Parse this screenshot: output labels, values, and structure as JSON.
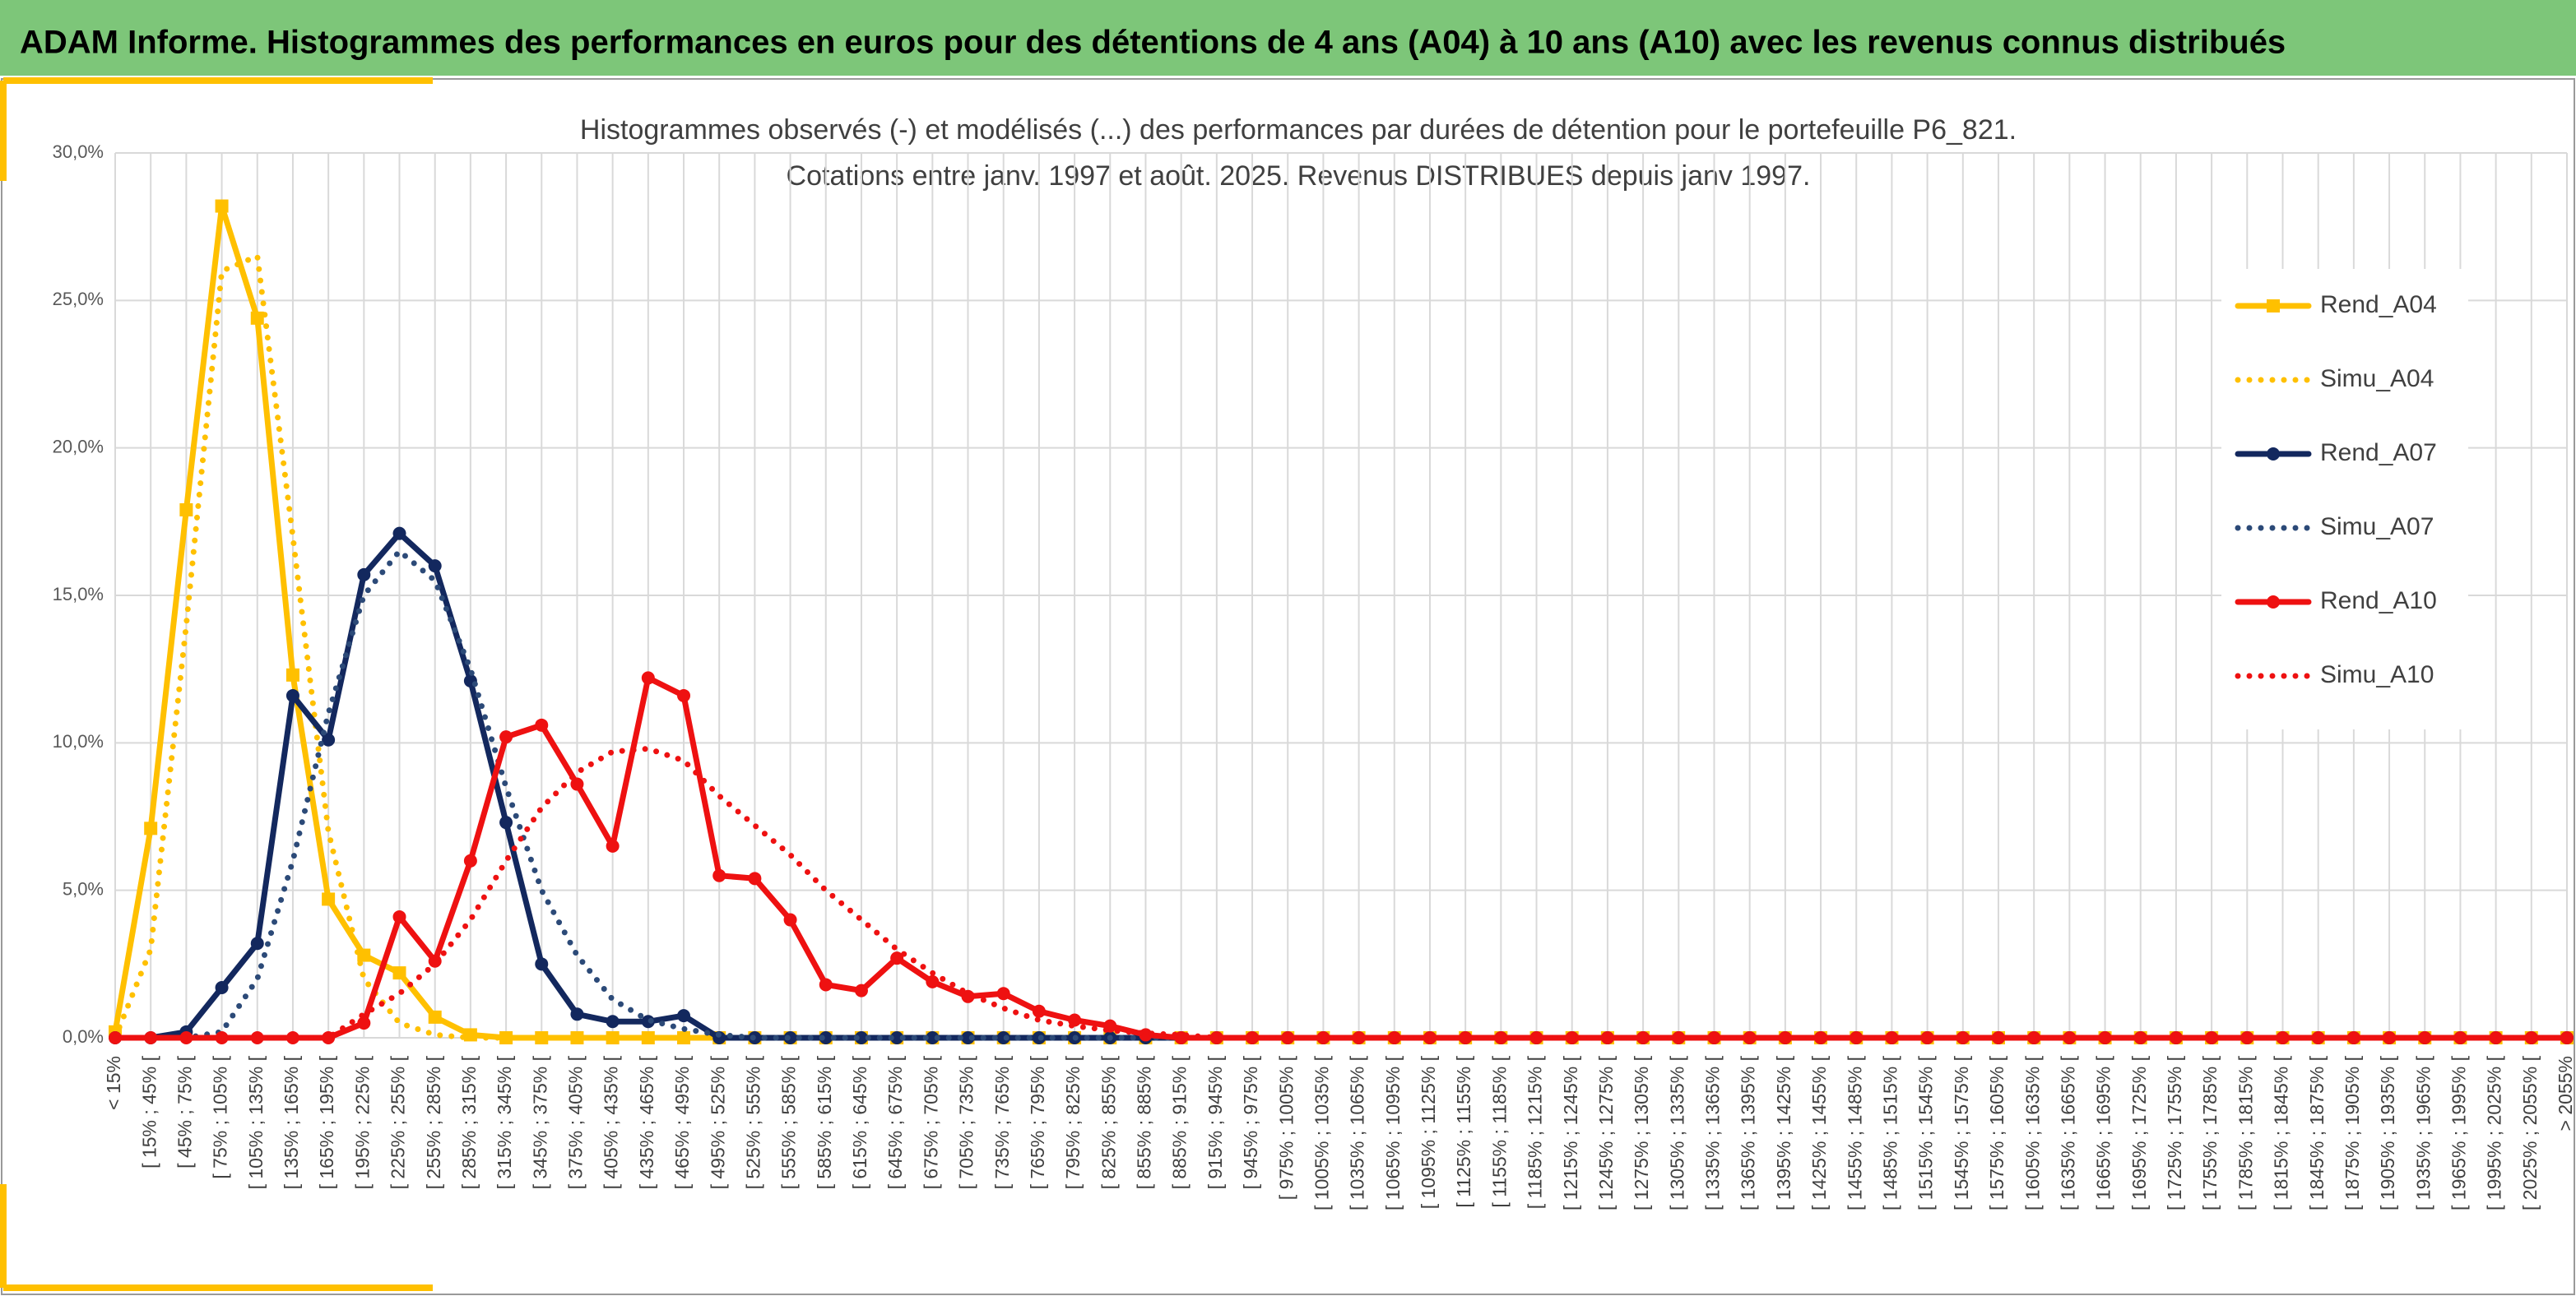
{
  "header": {
    "title": "ADAM Informe. Histogrammes des performances en euros pour des détentions de 4 ans (A04) à 10 ans (A10) avec les revenus connus distribués"
  },
  "chart_data": {
    "type": "line",
    "title": "Histogrammes observés (-) et modélisés (...) des performances par durées de détention pour le portefeuille P6_821.",
    "subtitle": "Cotations entre janv. 1997 et août. 2025. Revenus DISTRIBUES depuis janv 1997.",
    "categories": [
      "< 15%",
      "[ 15% ; 45% [",
      "[ 45% ; 75% [",
      "[ 75% ; 105% [",
      "[ 105% ; 135% [",
      "[ 135% ; 165% [",
      "[ 165% ; 195% [",
      "[ 195% ; 225% [",
      "[ 225% ; 255% [",
      "[ 255% ; 285% [",
      "[ 285% ; 315% [",
      "[ 315% ; 345% [",
      "[ 345% ; 375% [",
      "[ 375% ; 405% [",
      "[ 405% ; 435% [",
      "[ 435% ; 465% [",
      "[ 465% ; 495% [",
      "[ 495% ; 525% [",
      "[ 525% ; 555% [",
      "[ 555% ; 585% [",
      "[ 585% ; 615% [",
      "[ 615% ; 645% [",
      "[ 645% ; 675% [",
      "[ 675% ; 705% [",
      "[ 705% ; 735% [",
      "[ 735% ; 765% [",
      "[ 765% ; 795% [",
      "[ 795% ; 825% [",
      "[ 825% ; 855% [",
      "[ 855% ; 885% [",
      "[ 885% ; 915% [",
      "[ 915% ; 945% [",
      "[ 945% ; 975% [",
      "[ 975% ; 1005% [",
      "[ 1005% ; 1035% [",
      "[ 1035% ; 1065% [",
      "[ 1065% ; 1095% [",
      "[ 1095% ; 1125% [",
      "[ 1125% ; 1155% [",
      "[ 1155% ; 1185% [",
      "[ 1185% ; 1215% [",
      "[ 1215% ; 1245% [",
      "[ 1245% ; 1275% [",
      "[ 1275% ; 1305% [",
      "[ 1305% ; 1335% [",
      "[ 1335% ; 1365% [",
      "[ 1365% ; 1395% [",
      "[ 1395% ; 1425% [",
      "[ 1425% ; 1455% [",
      "[ 1455% ; 1485% [",
      "[ 1485% ; 1515% [",
      "[ 1515% ; 1545% [",
      "[ 1545% ; 1575% [",
      "[ 1575% ; 1605% [",
      "[ 1605% ; 1635% [",
      "[ 1635% ; 1665% [",
      "[ 1665% ; 1695% [",
      "[ 1695% ; 1725% [",
      "[ 1725% ; 1755% [",
      "[ 1755% ; 1785% [",
      "[ 1785% ; 1815% [",
      "[ 1815% ; 1845% [",
      "[ 1845% ; 1875% [",
      "[ 1875% ; 1905% [",
      "[ 1905% ; 1935% [",
      "[ 1935% ; 1965% [",
      "[ 1965% ; 1995% [",
      "[ 1995% ; 2025% [",
      "[ 2025% ; 2055% [",
      "> 2055%"
    ],
    "series": [
      {
        "name": "Rend_A04",
        "color": "#ffc000",
        "style": "solid",
        "marker": "square",
        "values": [
          0.2,
          7.1,
          17.9,
          28.2,
          24.4,
          12.3,
          4.7,
          2.8,
          2.2,
          0.7,
          0.1,
          0,
          0,
          0,
          0,
          0,
          0,
          0,
          0,
          0,
          0,
          0,
          0,
          0,
          0,
          0,
          0,
          0,
          0,
          0,
          0,
          0,
          0,
          0,
          0,
          0,
          0,
          0,
          0,
          0,
          0,
          0,
          0,
          0,
          0,
          0,
          0,
          0,
          0,
          0,
          0,
          0,
          0,
          0,
          0,
          0,
          0,
          0,
          0,
          0,
          0,
          0,
          0,
          0,
          0,
          0,
          0,
          0,
          0,
          0
        ]
      },
      {
        "name": "Simu_A04",
        "color": "#ffc000",
        "style": "dotted",
        "values": [
          0,
          3,
          14,
          26,
          26.5,
          17,
          7,
          2,
          0.5,
          0.1,
          0,
          0,
          0,
          0,
          0,
          0,
          0,
          0,
          0,
          0,
          0,
          0,
          0,
          0,
          0,
          0,
          0,
          0,
          0,
          0,
          0,
          0,
          0,
          0,
          0,
          0,
          0,
          0,
          0,
          0,
          0,
          0,
          0,
          0,
          0,
          0,
          0,
          0,
          0,
          0,
          0,
          0,
          0,
          0,
          0,
          0,
          0,
          0,
          0,
          0,
          0,
          0,
          0,
          0,
          0,
          0,
          0,
          0,
          0,
          0
        ]
      },
      {
        "name": "Rend_A07",
        "color": "#13285e",
        "style": "solid",
        "marker": "circle",
        "values": [
          0,
          0,
          0.2,
          1.7,
          3.2,
          11.6,
          10.1,
          15.7,
          17.1,
          16.0,
          12.1,
          7.3,
          2.5,
          0.8,
          0.55,
          0.55,
          0.75,
          0,
          0,
          0,
          0,
          0,
          0,
          0,
          0,
          0,
          0,
          0,
          0,
          0,
          0,
          0,
          0,
          0,
          0,
          0,
          0,
          0,
          0,
          0,
          0,
          0,
          0,
          0,
          0,
          0,
          0,
          0,
          0,
          0,
          0,
          0,
          0,
          0,
          0,
          0,
          0,
          0,
          0,
          0,
          0,
          0,
          0,
          0,
          0,
          0,
          0,
          0,
          0,
          0
        ]
      },
      {
        "name": "Simu_A07",
        "color": "#2c4a78",
        "style": "dotted",
        "values": [
          0,
          0,
          0,
          0.2,
          2,
          6,
          11,
          15,
          16.5,
          15.5,
          12.5,
          8.5,
          5,
          2.8,
          1.3,
          0.6,
          0.3,
          0.1,
          0,
          0,
          0,
          0,
          0,
          0,
          0,
          0,
          0,
          0,
          0,
          0,
          0,
          0,
          0,
          0,
          0,
          0,
          0,
          0,
          0,
          0,
          0,
          0,
          0,
          0,
          0,
          0,
          0,
          0,
          0,
          0,
          0,
          0,
          0,
          0,
          0,
          0,
          0,
          0,
          0,
          0,
          0,
          0,
          0,
          0,
          0,
          0,
          0,
          0,
          0,
          0
        ]
      },
      {
        "name": "Rend_A10",
        "color": "#ee1111",
        "style": "solid",
        "marker": "circle",
        "values": [
          0,
          0,
          0,
          0,
          0,
          0,
          0,
          0.5,
          4.1,
          2.6,
          6.0,
          10.2,
          10.6,
          8.6,
          6.5,
          12.2,
          11.6,
          5.5,
          5.4,
          4.0,
          1.8,
          1.6,
          2.7,
          1.9,
          1.4,
          1.5,
          0.9,
          0.6,
          0.4,
          0.1,
          0,
          0,
          0,
          0,
          0,
          0,
          0,
          0,
          0,
          0,
          0,
          0,
          0,
          0,
          0,
          0,
          0,
          0,
          0,
          0,
          0,
          0,
          0,
          0,
          0,
          0,
          0,
          0,
          0,
          0,
          0,
          0,
          0,
          0,
          0,
          0,
          0,
          0,
          0,
          0
        ]
      },
      {
        "name": "Simu_A10",
        "color": "#ee1111",
        "style": "dotted",
        "values": [
          0,
          0,
          0,
          0,
          0,
          0,
          0,
          0.8,
          1.5,
          2.5,
          4,
          6,
          7.8,
          9,
          9.7,
          9.8,
          9.4,
          8.2,
          7.2,
          6.2,
          5,
          4,
          3,
          2.2,
          1.5,
          1,
          0.6,
          0.4,
          0.25,
          0.15,
          0.1,
          0,
          0,
          0,
          0,
          0,
          0,
          0,
          0,
          0,
          0,
          0,
          0,
          0,
          0,
          0,
          0,
          0,
          0,
          0,
          0,
          0,
          0,
          0,
          0,
          0,
          0,
          0,
          0,
          0,
          0,
          0,
          0,
          0,
          0,
          0,
          0,
          0,
          0,
          0
        ]
      }
    ],
    "ylim": [
      0,
      30
    ],
    "yticks": [
      {
        "value": 0,
        "label": "0,0%"
      },
      {
        "value": 5,
        "label": "5,0%"
      },
      {
        "value": 10,
        "label": "10,0%"
      },
      {
        "value": 15,
        "label": "15,0%"
      },
      {
        "value": 20,
        "label": "20,0%"
      },
      {
        "value": 25,
        "label": "25,0%"
      },
      {
        "value": 30,
        "label": "30,0%"
      }
    ],
    "grid": true,
    "legend": "right"
  }
}
